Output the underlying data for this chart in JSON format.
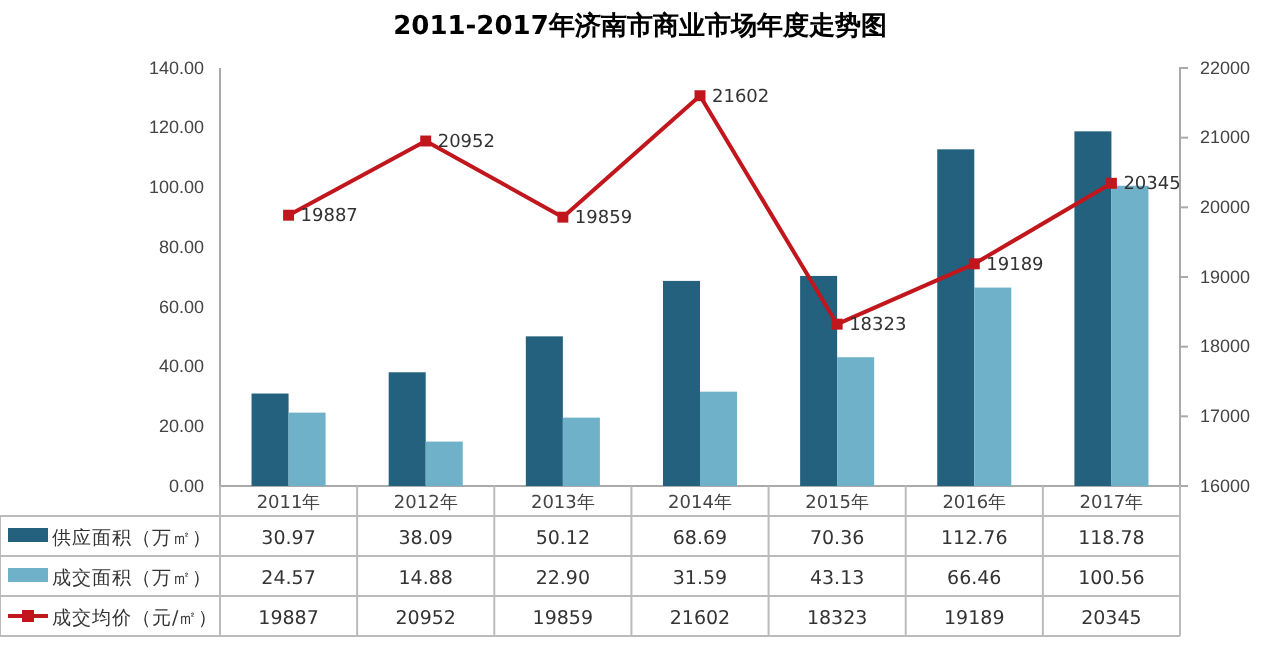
{
  "chart_data": {
    "type": "bar",
    "title": "2011-2017年济南市商业市场年度走势图",
    "categories": [
      "2011年",
      "2012年",
      "2013年",
      "2014年",
      "2015年",
      "2016年",
      "2017年"
    ],
    "series": [
      {
        "name": "供应面积（万㎡）",
        "color": "#23617e",
        "values": [
          30.97,
          38.09,
          50.12,
          68.69,
          70.36,
          112.76,
          118.78
        ],
        "value_labels": [
          "30.97",
          "38.09",
          "50.12",
          "68.69",
          "70.36",
          "112.76",
          "118.78"
        ]
      },
      {
        "name": "成交面积（万㎡）",
        "color": "#6fb1c9",
        "values": [
          24.57,
          14.88,
          22.9,
          31.59,
          43.13,
          66.46,
          100.56
        ],
        "value_labels": [
          "24.57",
          "14.88",
          "22.90",
          "31.59",
          "43.13",
          "66.46",
          "100.56"
        ]
      },
      {
        "name": "成交均价（元/㎡）",
        "color": "#c0161c",
        "type": "line",
        "axis": "y2",
        "marker": "square",
        "values": [
          19887,
          20952,
          19859,
          21602,
          18323,
          19189,
          20345
        ],
        "value_labels": [
          "19887",
          "20952",
          "19859",
          "21602",
          "18323",
          "19189",
          "20345"
        ]
      }
    ],
    "ylim": [
      0,
      140
    ],
    "yticks": [
      {
        "value": 0,
        "label": "0.00"
      },
      {
        "value": 20,
        "label": "20.00"
      },
      {
        "value": 40,
        "label": "40.00"
      },
      {
        "value": 60,
        "label": "60.00"
      },
      {
        "value": 80,
        "label": "80.00"
      },
      {
        "value": 100,
        "label": "100.00"
      },
      {
        "value": 120,
        "label": "120.00"
      },
      {
        "value": 140,
        "label": "140.00"
      }
    ],
    "y2lim": [
      16000,
      22000
    ],
    "y2ticks": [
      16000,
      17000,
      18000,
      19000,
      20000,
      21000,
      22000
    ],
    "legend": "bottom",
    "grid": false
  }
}
